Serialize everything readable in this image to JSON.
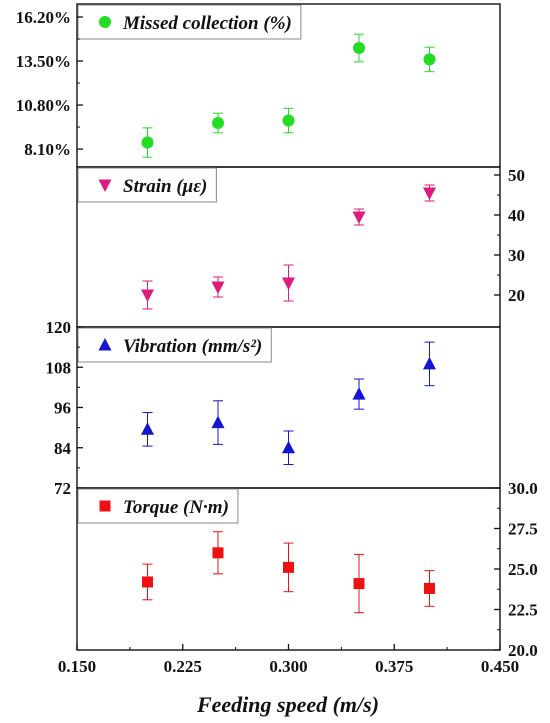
{
  "chart_data": [
    {
      "type": "scatter",
      "series": [
        {
          "name": "Missed collection (%)",
          "x": [
            0.2,
            0.25,
            0.3,
            0.35,
            0.4
          ],
          "y": [
            8.5,
            9.7,
            9.85,
            14.3,
            13.6
          ],
          "error": [
            0.9,
            0.6,
            0.75,
            0.85,
            0.75
          ],
          "color": "#22dd22",
          "marker": "circle"
        }
      ],
      "axis": "left",
      "ylim": [
        7.0,
        17.0
      ],
      "yticks": [
        8.1,
        10.8,
        13.5,
        16.2
      ],
      "ytick_labels": [
        "8.10%",
        "10.80%",
        "13.50%",
        "16.20%"
      ]
    },
    {
      "type": "scatter",
      "series": [
        {
          "name": "Strain (με)",
          "x": [
            0.2,
            0.25,
            0.3,
            0.35,
            0.4
          ],
          "y": [
            20.0,
            22.0,
            23.0,
            39.5,
            45.5
          ],
          "error": [
            3.5,
            2.5,
            4.5,
            2.0,
            2.0
          ],
          "color": "#e0197d",
          "marker": "triangle-down"
        }
      ],
      "axis": "right",
      "ylim": [
        12.0,
        52.0
      ],
      "yticks": [
        20,
        30,
        40,
        50
      ],
      "ytick_labels": [
        "20",
        "30",
        "40",
        "50"
      ]
    },
    {
      "type": "scatter",
      "series": [
        {
          "name": "Vibration (mm/s²)",
          "x": [
            0.2,
            0.25,
            0.3,
            0.35,
            0.4
          ],
          "y": [
            89.5,
            91.5,
            84.0,
            100.0,
            109.0
          ],
          "error": [
            5.0,
            6.5,
            5.0,
            4.5,
            6.5
          ],
          "color": "#1414d2",
          "marker": "triangle-up"
        }
      ],
      "axis": "left",
      "ylim": [
        72.0,
        120.0
      ],
      "yticks": [
        72,
        84,
        96,
        108,
        120
      ],
      "ytick_labels": [
        "72",
        "84",
        "96",
        "108",
        "120"
      ]
    },
    {
      "type": "scatter",
      "series": [
        {
          "name": "Torque (N·m)",
          "x": [
            0.2,
            0.25,
            0.3,
            0.35,
            0.4
          ],
          "y": [
            24.2,
            26.0,
            25.1,
            24.1,
            23.8
          ],
          "error": [
            1.1,
            1.3,
            1.5,
            1.8,
            1.1
          ],
          "color": "#ee1111",
          "marker": "square"
        }
      ],
      "axis": "right",
      "ylim": [
        20.0,
        30.0
      ],
      "yticks": [
        20.0,
        22.5,
        25.0,
        27.5,
        30.0
      ],
      "ytick_labels": [
        "20.0",
        "22.5",
        "25.0",
        "27.5",
        "30.0"
      ]
    }
  ],
  "x_axis": {
    "xlim": [
      0.15,
      0.45
    ],
    "xticks": [
      0.15,
      0.225,
      0.3,
      0.375,
      0.45
    ],
    "xtick_labels": [
      "0.150",
      "0.225",
      "0.300",
      "0.375",
      "0.450"
    ],
    "xlabel": "Feeding speed (m/s)"
  }
}
